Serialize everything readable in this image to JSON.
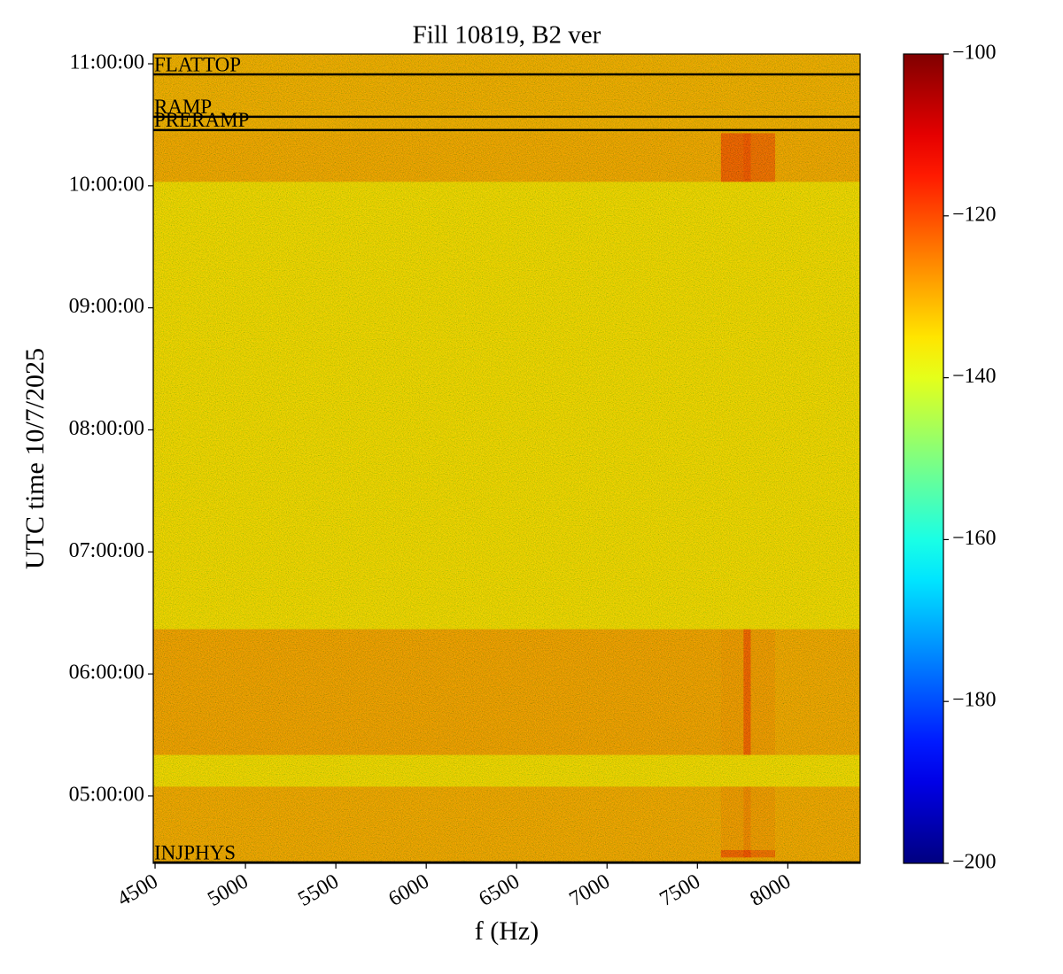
{
  "chart_data": {
    "type": "heatmap",
    "title": "Fill 10819, B2 ver",
    "x_label": "f (Hz)",
    "y_label": "UTC time 10/7/2025",
    "colormap": "jet",
    "freq_edges": [
      4490,
      7630,
      7755,
      7795,
      7930,
      8400
    ],
    "time_edges": [
      4.448,
      4.5,
      4.56,
      5.08,
      5.34,
      6.37,
      10.036,
      10.435,
      11.08
    ],
    "values": [
      [
        -129,
        -129,
        -129,
        -129,
        -129
      ],
      [
        -129,
        -118,
        -115,
        -120,
        -129
      ],
      [
        -129,
        -127,
        -124,
        -127,
        -129
      ],
      [
        -137,
        -137,
        -137,
        -137,
        -137
      ],
      [
        -128,
        -127,
        -118,
        -127,
        -129
      ],
      [
        -137,
        -137,
        -137,
        -137,
        -137
      ],
      [
        -129,
        -118,
        -116,
        -120,
        -129
      ],
      [
        -130,
        -130,
        -130,
        -130,
        -130
      ]
    ],
    "xlim": [
      4490,
      8400
    ],
    "xticks": [
      4500,
      5000,
      5500,
      6000,
      6500,
      7000,
      7500,
      8000
    ],
    "ylim": [
      4.448,
      11.08
    ],
    "yticks": [
      {
        "value": 5,
        "label": "05:00:00"
      },
      {
        "value": 6,
        "label": "06:00:00"
      },
      {
        "value": 7,
        "label": "07:00:00"
      },
      {
        "value": 8,
        "label": "08:00:00"
      },
      {
        "value": 9,
        "label": "09:00:00"
      },
      {
        "value": 10,
        "label": "10:00:00"
      },
      {
        "value": 11,
        "label": "11:00:00"
      }
    ],
    "zlim": [
      -200,
      -100
    ],
    "zticks": [
      {
        "value": -200,
        "label": "−200"
      },
      {
        "value": -180,
        "label": "−180"
      },
      {
        "value": -160,
        "label": "−160"
      },
      {
        "value": -140,
        "label": "−140"
      },
      {
        "value": -120,
        "label": "−120"
      },
      {
        "value": -100,
        "label": "−100"
      }
    ],
    "events": [
      {
        "label": "FLATTOP",
        "time": 10.913
      },
      {
        "label": "RAMP",
        "time": 10.566
      },
      {
        "label": "PRERAMP",
        "time": 10.457
      },
      {
        "label": "INJPHYS",
        "time": 4.455
      }
    ]
  }
}
